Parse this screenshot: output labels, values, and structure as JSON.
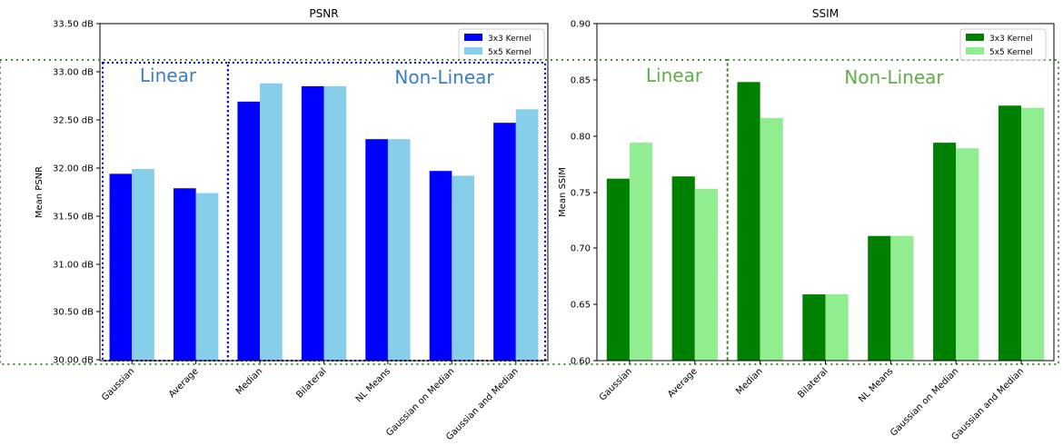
{
  "chart_data": [
    {
      "type": "bar",
      "title": "PSNR",
      "xlabel": "",
      "ylabel": "Mean PSNR",
      "ylim": [
        30.0,
        33.5
      ],
      "y_ticks": [
        "30.00 dB",
        "30.50 dB",
        "31.00 dB",
        "31.50 dB",
        "32.00 dB",
        "32.50 dB",
        "33.00 dB",
        "33.50 dB"
      ],
      "categories": [
        "Gaussian",
        "Average",
        "Median",
        "Bilateral",
        "NL Means",
        "Gaussian on Median",
        "Gaussian and Median"
      ],
      "series": [
        {
          "name": "3x3 Kernel",
          "color": "#0000ff",
          "values": [
            31.94,
            31.79,
            32.69,
            32.85,
            32.3,
            31.97,
            32.47
          ]
        },
        {
          "name": "5x5 Kernel",
          "color": "#87ceeb",
          "values": [
            31.99,
            31.74,
            32.88,
            32.85,
            32.3,
            31.92,
            32.61
          ]
        }
      ],
      "regions": [
        {
          "label": "Linear",
          "label_color": "#3a7fc1",
          "border_color": "#0000cc"
        },
        {
          "label": "Non-Linear",
          "label_color": "#3a7fc1",
          "border_color": "#0000cc"
        }
      ],
      "legend": "top-right",
      "grid": false
    },
    {
      "type": "bar",
      "title": "SSIM",
      "xlabel": "",
      "ylabel": "Mean SSIM",
      "ylim": [
        0.6,
        0.9
      ],
      "y_ticks": [
        "0.60",
        "0.65",
        "0.70",
        "0.75",
        "0.80",
        "0.85",
        "0.90"
      ],
      "categories": [
        "Gaussian",
        "Average",
        "Median",
        "Bilateral",
        "NL Means",
        "Gaussian on Median",
        "Gaussian and Median"
      ],
      "series": [
        {
          "name": "3x3 Kernel",
          "color": "#008000",
          "values": [
            0.762,
            0.764,
            0.848,
            0.659,
            0.711,
            0.794,
            0.827
          ]
        },
        {
          "name": "5x5 Kernel",
          "color": "#90ee90",
          "values": [
            0.794,
            0.753,
            0.816,
            0.659,
            0.711,
            0.789,
            0.825
          ]
        }
      ],
      "regions": [
        {
          "label": "Linear",
          "label_color": "#5fae4a",
          "border_color": "#4a8a3a"
        },
        {
          "label": "Non-Linear",
          "label_color": "#5fae4a",
          "border_color": "#4a8a3a"
        }
      ],
      "legend": "top-right",
      "grid": false
    }
  ]
}
